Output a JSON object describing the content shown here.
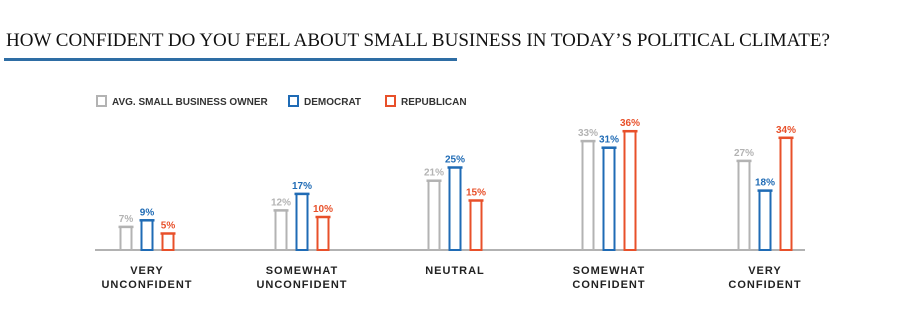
{
  "chart_data": {
    "type": "bar",
    "title": "HOW CONFIDENT DO YOU FEEL ABOUT SMALL BUSINESS IN TODAY’S POLITICAL CLIMATE?",
    "categories": [
      [
        "VERY",
        "UNCONFIDENT"
      ],
      [
        "SOMEWHAT",
        "UNCONFIDENT"
      ],
      [
        "NEUTRAL"
      ],
      [
        "SOMEWHAT",
        "CONFIDENT"
      ],
      [
        "VERY",
        "CONFIDENT"
      ]
    ],
    "series": [
      {
        "name": "AVG. SMALL BUSINESS OWNER",
        "color": "#b3b3b3",
        "values": [
          7,
          12,
          21,
          33,
          27
        ],
        "value_labels": [
          "7%",
          "12%",
          "21%",
          "33%",
          "27%"
        ]
      },
      {
        "name": "DEMOCRAT",
        "color": "#1f6bb5",
        "values": [
          9,
          17,
          25,
          31,
          18
        ],
        "value_labels": [
          "9%",
          "17%",
          "25%",
          "31%",
          "18%"
        ]
      },
      {
        "name": "REPUBLICAN",
        "color": "#e8502a",
        "values": [
          5,
          10,
          15,
          36,
          34
        ],
        "value_labels": [
          "5%",
          "10%",
          "15%",
          "36%",
          "34%"
        ]
      }
    ]
  }
}
